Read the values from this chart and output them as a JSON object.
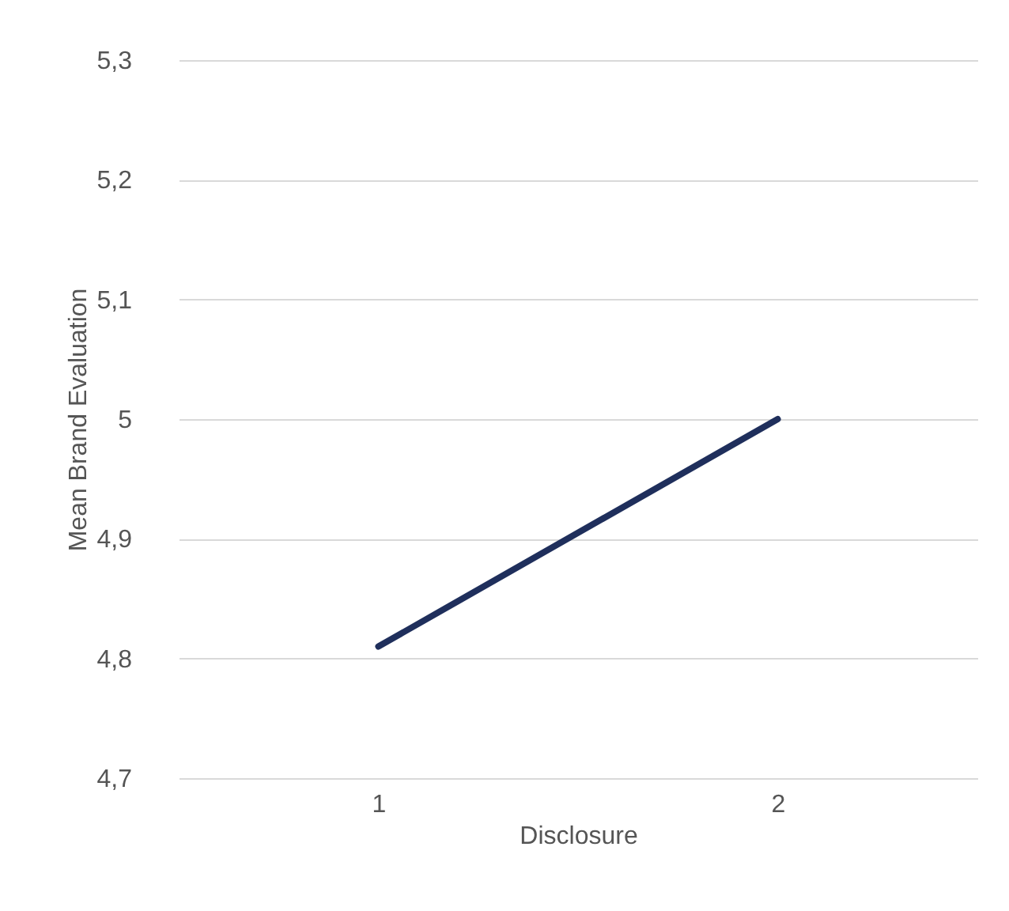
{
  "chart_data": {
    "type": "line",
    "xlabel": "Disclosure",
    "ylabel": "Mean Brand Evaluation",
    "categories": [
      "1",
      "2"
    ],
    "series": [
      {
        "color": "#1f2f5c",
        "values": [
          4.81,
          5.0
        ]
      }
    ],
    "ylim": [
      4.7,
      5.3
    ],
    "yticks": [
      {
        "value": 4.7,
        "label": "4,7"
      },
      {
        "value": 4.8,
        "label": "4,8"
      },
      {
        "value": 4.9,
        "label": "4,9"
      },
      5,
      {
        "value": 5.1,
        "label": "5,1"
      },
      {
        "value": 5.2,
        "label": "5,2"
      },
      {
        "value": 5.3,
        "label": "5,3"
      }
    ],
    "grid": "y",
    "marker": "none",
    "line_style": "solid"
  }
}
